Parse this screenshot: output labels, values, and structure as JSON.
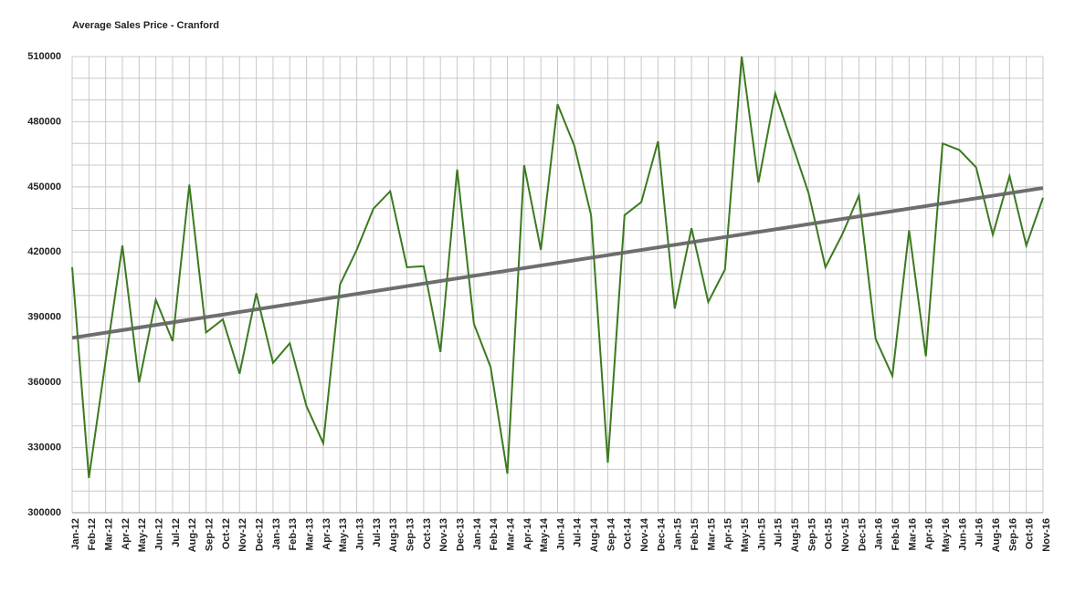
{
  "chart_data": {
    "type": "line",
    "title": "Average Sales Price - Cranford",
    "categories": [
      "Jan-12",
      "Feb-12",
      "Mar-12",
      "Apr-12",
      "May-12",
      "Jun-12",
      "Jul-12",
      "Aug-12",
      "Sep-12",
      "Oct-12",
      "Nov-12",
      "Dec-12",
      "Jan-13",
      "Feb-13",
      "Mar-13",
      "Apr-13",
      "May-13",
      "Jun-13",
      "Jul-13",
      "Aug-13",
      "Sep-13",
      "Oct-13",
      "Nov-13",
      "Dec-13",
      "Jan-14",
      "Feb-14",
      "Mar-14",
      "Apr-14",
      "May-14",
      "Jun-14",
      "Jul-14",
      "Aug-14",
      "Sep-14",
      "Oct-14",
      "Nov-14",
      "Dec-14",
      "Jan-15",
      "Feb-15",
      "Mar-15",
      "Apr-15",
      "May-15",
      "Jun-15",
      "Jul-15",
      "Aug-15",
      "Sep-15",
      "Oct-15",
      "Nov-15",
      "Dec-15",
      "Jan-16",
      "Feb-16",
      "Mar-16",
      "Apr-16",
      "May-16",
      "Jun-16",
      "Jul-16",
      "Aug-16",
      "Sep-16",
      "Oct-16",
      "Nov-16"
    ],
    "series": [
      {
        "color": "#3b7a1f",
        "values": [
          413000,
          316000,
          370000,
          423000,
          360000,
          398000,
          379000,
          451000,
          383000,
          389000,
          364000,
          401000,
          369000,
          378000,
          349000,
          332000,
          405000,
          421000,
          440000,
          448000,
          413000,
          413500,
          374000,
          458000,
          387000,
          367000,
          318000,
          460000,
          421000,
          488000,
          469000,
          437000,
          323000,
          437000,
          443000,
          471000,
          394000,
          431000,
          397000,
          412000,
          510000,
          452000,
          493000,
          470000,
          447000,
          413000,
          428000,
          446000,
          380000,
          363000,
          430000,
          372000,
          470000,
          467000,
          459000,
          428000,
          455000,
          423000,
          445000
        ]
      }
    ],
    "trendline": {
      "color": "#666666",
      "values": [
        380500,
        449500
      ]
    },
    "ylim": [
      300000,
      510000
    ],
    "yticks": [
      300000,
      330000,
      360000,
      390000,
      420000,
      450000,
      480000,
      510000
    ],
    "grid": true
  }
}
